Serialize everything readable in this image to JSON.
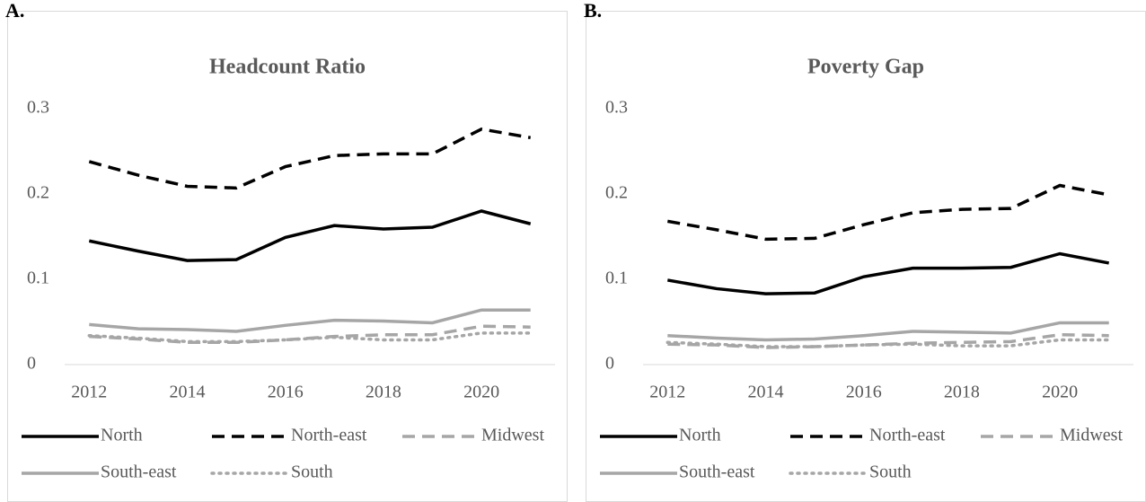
{
  "chart_data": [
    {
      "type": "line",
      "label": "A.",
      "title": "Headcount Ratio",
      "x": [
        2012,
        2013,
        2014,
        2015,
        2016,
        2017,
        2018,
        2019,
        2020,
        2021
      ],
      "xlim": [
        2011.5,
        2021.5
      ],
      "xticks": [
        2012,
        2014,
        2016,
        2018,
        2020
      ],
      "ylim": [
        0,
        0.3
      ],
      "yticks": [
        0,
        0.1,
        0.2,
        0.3
      ],
      "series": [
        {
          "name": "North",
          "color": "#000000",
          "dash": "solid",
          "values": [
            0.145,
            0.133,
            0.122,
            0.123,
            0.149,
            0.163,
            0.159,
            0.161,
            0.18,
            0.165
          ]
        },
        {
          "name": "North-east",
          "color": "#000000",
          "dash": "dashed",
          "values": [
            0.238,
            0.222,
            0.209,
            0.207,
            0.232,
            0.245,
            0.247,
            0.247,
            0.276,
            0.266
          ]
        },
        {
          "name": "Midwest",
          "color": "#a6a6a6",
          "dash": "dashed",
          "values": [
            0.033,
            0.03,
            0.026,
            0.026,
            0.029,
            0.033,
            0.035,
            0.035,
            0.045,
            0.044
          ]
        },
        {
          "name": "South-east",
          "color": "#a6a6a6",
          "dash": "solid",
          "values": [
            0.047,
            0.042,
            0.041,
            0.039,
            0.046,
            0.052,
            0.051,
            0.049,
            0.064,
            0.064
          ]
        },
        {
          "name": "South",
          "color": "#a6a6a6",
          "dash": "dotted",
          "values": [
            0.034,
            0.031,
            0.027,
            0.027,
            0.029,
            0.032,
            0.029,
            0.029,
            0.037,
            0.037
          ]
        }
      ]
    },
    {
      "type": "line",
      "label": "B.",
      "title": "Poverty Gap",
      "x": [
        2012,
        2013,
        2014,
        2015,
        2016,
        2017,
        2018,
        2019,
        2020,
        2021
      ],
      "xlim": [
        2011.5,
        2021.5
      ],
      "xticks": [
        2012,
        2014,
        2016,
        2018,
        2020
      ],
      "ylim": [
        0,
        0.3
      ],
      "yticks": [
        0,
        0.1,
        0.2,
        0.3
      ],
      "series": [
        {
          "name": "North",
          "color": "#000000",
          "dash": "solid",
          "values": [
            0.099,
            0.089,
            0.083,
            0.084,
            0.103,
            0.113,
            0.113,
            0.114,
            0.13,
            0.119
          ]
        },
        {
          "name": "North-east",
          "color": "#000000",
          "dash": "dashed",
          "values": [
            0.168,
            0.158,
            0.147,
            0.148,
            0.164,
            0.178,
            0.182,
            0.183,
            0.21,
            0.199
          ]
        },
        {
          "name": "Midwest",
          "color": "#a6a6a6",
          "dash": "dashed",
          "values": [
            0.024,
            0.023,
            0.02,
            0.021,
            0.023,
            0.025,
            0.026,
            0.027,
            0.035,
            0.034
          ]
        },
        {
          "name": "South-east",
          "color": "#a6a6a6",
          "dash": "solid",
          "values": [
            0.034,
            0.031,
            0.029,
            0.03,
            0.034,
            0.039,
            0.038,
            0.037,
            0.049,
            0.049
          ]
        },
        {
          "name": "South",
          "color": "#a6a6a6",
          "dash": "dotted",
          "values": [
            0.026,
            0.024,
            0.021,
            0.021,
            0.023,
            0.024,
            0.022,
            0.022,
            0.029,
            0.029
          ]
        }
      ]
    }
  ]
}
